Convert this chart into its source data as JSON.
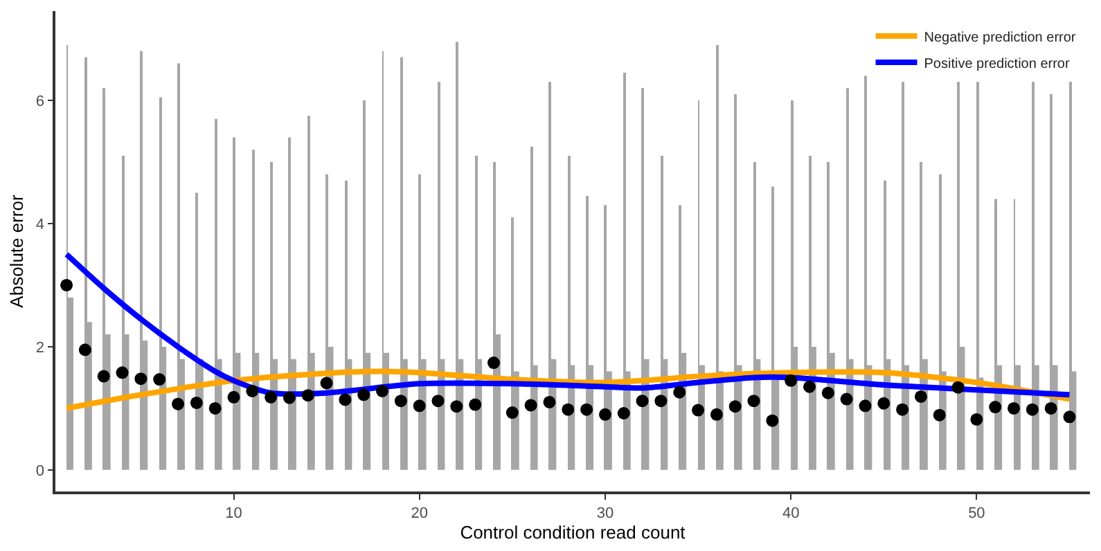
{
  "chart_data": {
    "type": "scatter",
    "xlabel": "Control condition read count",
    "ylabel": "Absolute error",
    "xlim": [
      0.4,
      56.1
    ],
    "xticks": [
      10,
      20,
      30,
      40,
      50
    ],
    "ylim": [
      -0.35,
      7.45
    ],
    "yticks": [
      0,
      2,
      4,
      6
    ],
    "legend": "top right",
    "series": [
      {
        "type": "bar",
        "color": "#a6a6a6",
        "x": [
          1,
          2,
          3,
          4,
          5,
          6,
          7,
          8,
          9,
          10,
          11,
          12,
          13,
          14,
          15,
          16,
          17,
          18,
          19,
          20,
          21,
          22,
          23,
          24,
          25,
          26,
          27,
          28,
          29,
          30,
          31,
          32,
          33,
          34,
          35,
          36,
          37,
          38,
          39,
          40,
          41,
          42,
          43,
          44,
          45,
          46,
          47,
          48,
          49,
          50,
          51,
          52,
          53,
          54,
          55
        ],
        "values": [
          6.9,
          6.7,
          6.2,
          5.1,
          6.8,
          6.05,
          6.6,
          4.5,
          5.7,
          5.4,
          5.2,
          5.0,
          5.4,
          5.75,
          4.8,
          4.7,
          6.0,
          6.8,
          6.7,
          4.8,
          6.3,
          6.95,
          5.1,
          5.0,
          4.1,
          5.25,
          6.3,
          5.1,
          4.45,
          4.3,
          6.45,
          6.2,
          5.1,
          4.3,
          6.0,
          6.9,
          6.1,
          5.0,
          4.6,
          6.0,
          5.1,
          5.0,
          6.2,
          6.4,
          4.7,
          6.3,
          5.0,
          4.8,
          6.3,
          6.3,
          4.4,
          4.4,
          6.3,
          6.1,
          6.3
        ]
      },
      {
        "type": "bar",
        "color": "#a6a6a6",
        "x": [
          1,
          2,
          3,
          4,
          5,
          6,
          7,
          8,
          9,
          10,
          11,
          12,
          13,
          14,
          15,
          16,
          17,
          18,
          19,
          20,
          21,
          22,
          23,
          24,
          25,
          26,
          27,
          28,
          29,
          30,
          31,
          32,
          33,
          34,
          35,
          36,
          37,
          38,
          39,
          40,
          41,
          42,
          43,
          44,
          45,
          46,
          47,
          48,
          49,
          50,
          51,
          52,
          53,
          54,
          55
        ],
        "values": [
          2.8,
          2.4,
          2.2,
          2.2,
          2.1,
          2.0,
          1.8,
          1.8,
          1.8,
          1.9,
          1.9,
          1.8,
          1.8,
          1.9,
          2.0,
          1.8,
          1.9,
          1.9,
          1.8,
          1.8,
          1.8,
          1.8,
          1.8,
          2.2,
          1.6,
          1.7,
          1.8,
          1.7,
          1.7,
          1.6,
          1.6,
          1.8,
          1.8,
          1.9,
          1.7,
          1.6,
          1.7,
          1.8,
          1.5,
          2.0,
          2.0,
          1.9,
          1.8,
          1.7,
          1.8,
          1.7,
          1.8,
          1.6,
          2.0,
          1.5,
          1.7,
          1.7,
          1.7,
          1.7,
          1.6
        ]
      },
      {
        "color": "#000000",
        "marker": "circle",
        "x": [
          1,
          2,
          3,
          4,
          5,
          6,
          7,
          8,
          9,
          10,
          11,
          12,
          13,
          14,
          15,
          16,
          17,
          18,
          19,
          20,
          21,
          22,
          23,
          24,
          25,
          26,
          27,
          28,
          29,
          30,
          31,
          32,
          33,
          34,
          35,
          36,
          37,
          38,
          39,
          40,
          41,
          42,
          43,
          44,
          45,
          46,
          47,
          48,
          49,
          50,
          51,
          52,
          53,
          54,
          55
        ],
        "values": [
          3.0,
          1.95,
          1.52,
          1.58,
          1.48,
          1.47,
          1.07,
          1.09,
          1.0,
          1.18,
          1.28,
          1.18,
          1.17,
          1.21,
          1.41,
          1.14,
          1.22,
          1.28,
          1.12,
          1.04,
          1.12,
          1.03,
          1.06,
          1.74,
          0.93,
          1.05,
          1.1,
          0.98,
          0.98,
          0.9,
          0.92,
          1.12,
          1.12,
          1.26,
          0.97,
          0.9,
          1.03,
          1.12,
          0.8,
          1.45,
          1.35,
          1.25,
          1.15,
          1.04,
          1.08,
          0.98,
          1.19,
          0.89,
          1.34,
          0.82,
          1.02,
          1.0,
          0.98,
          1.0,
          0.86
        ]
      },
      {
        "type": "line",
        "name": "Negative prediction error",
        "color": "#ffa500",
        "marker": "none",
        "line_style": "solid",
        "x": [
          1,
          5,
          10,
          15,
          18,
          20,
          25,
          30,
          32,
          35,
          40,
          45,
          50,
          55
        ],
        "values": [
          1.0,
          1.22,
          1.45,
          1.57,
          1.6,
          1.58,
          1.47,
          1.42,
          1.45,
          1.52,
          1.58,
          1.58,
          1.42,
          1.15
        ]
      },
      {
        "type": "line",
        "name": "Positive prediction error",
        "color": "#0000ff",
        "marker": "none",
        "line_style": "solid",
        "x": [
          1,
          3,
          5,
          7,
          9,
          10,
          12,
          15,
          20,
          25,
          30,
          32,
          35,
          38,
          40,
          45,
          50,
          55
        ],
        "values": [
          3.5,
          2.95,
          2.45,
          2.0,
          1.6,
          1.45,
          1.25,
          1.25,
          1.4,
          1.4,
          1.35,
          1.33,
          1.42,
          1.5,
          1.5,
          1.38,
          1.3,
          1.22
        ]
      }
    ]
  }
}
